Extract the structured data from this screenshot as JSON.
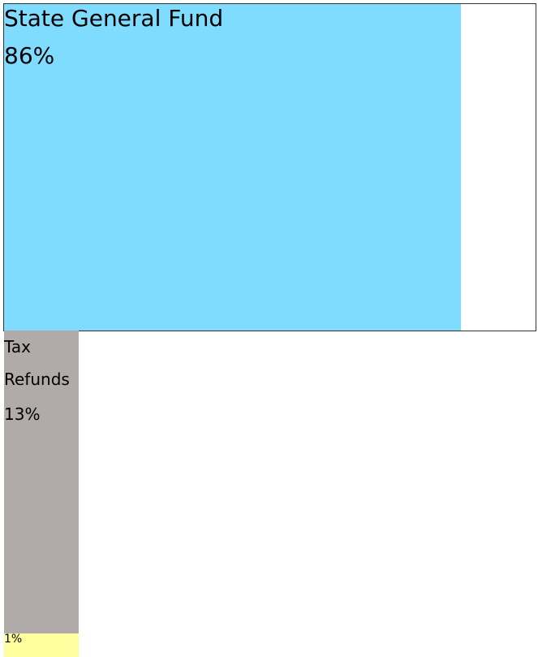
{
  "chart_data": {
    "type": "treemap",
    "categories": [
      "State General Fund",
      "Tax Refunds",
      null
    ],
    "values": [
      86,
      13,
      1
    ],
    "value_labels": [
      "86%",
      "13%",
      "1%"
    ],
    "colors": [
      "#80dcff",
      "#b0aaa8",
      "#ffffa0"
    ]
  }
}
